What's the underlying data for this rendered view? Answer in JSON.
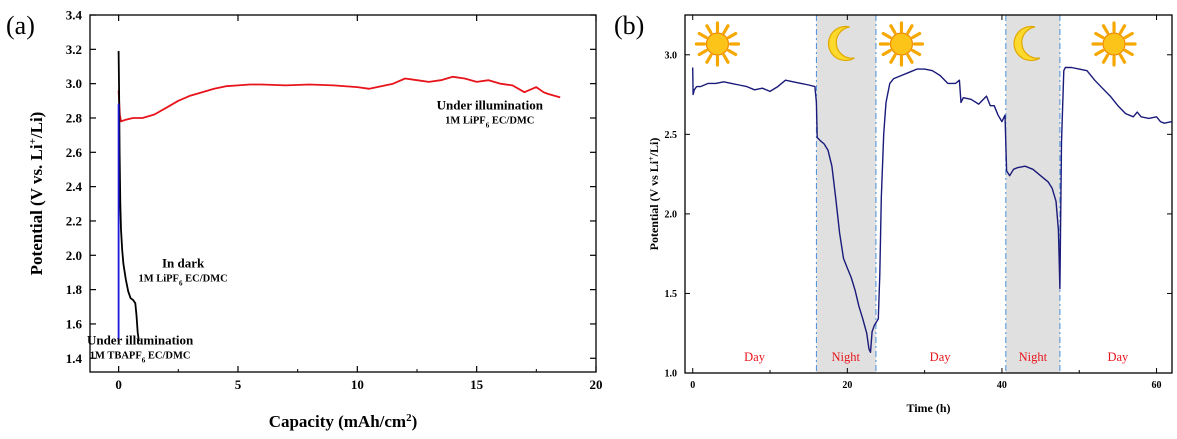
{
  "panels": {
    "a": {
      "label": "(a)"
    },
    "b": {
      "label": "(b)"
    }
  },
  "chart_data": [
    {
      "type": "line",
      "panel": "a",
      "xlabel": "Capacity (mAh/cm",
      "xlabel_sup": "2",
      "xlabel_end": ")",
      "ylabel": "Potential (V vs. Li",
      "ylabel_sup": "+",
      "ylabel_end": "/Li)",
      "xlim": [
        -1.2,
        20
      ],
      "ylim": [
        1.32,
        3.4
      ],
      "xticks": [
        0,
        5,
        10,
        15,
        20
      ],
      "yticks": [
        1.4,
        1.6,
        1.8,
        2.0,
        2.2,
        2.4,
        2.6,
        2.8,
        3.0,
        3.2,
        3.4
      ],
      "annotations": [
        {
          "line1": "Under illumination",
          "line2_pre": "1M LiPF",
          "line2_sub": "6",
          "line2_post": " EC/DMC",
          "color": "#e8141b",
          "x": 15.55,
          "y": 2.85,
          "anchor": "middle"
        },
        {
          "line1": "In dark",
          "line2_pre": "1M LiPF",
          "line2_sub": "6",
          "line2_post": " EC/DMC",
          "color": "#000000",
          "x": 2.7,
          "y": 1.93,
          "anchor": "middle"
        },
        {
          "line1": "Under illumination",
          "line2_pre": "1M TBAPF",
          "line2_sub": "6",
          "line2_post": " EC/DMC",
          "color": "#1a1adb",
          "x": 0.9,
          "y": 1.48,
          "anchor": "middle"
        }
      ],
      "series": [
        {
          "color": "#e8141b",
          "points": [
            [
              0,
              2.96
            ],
            [
              0.02,
              2.9
            ],
            [
              0.05,
              2.82
            ],
            [
              0.1,
              2.78
            ],
            [
              0.3,
              2.79
            ],
            [
              0.6,
              2.8
            ],
            [
              1,
              2.8
            ],
            [
              1.5,
              2.82
            ],
            [
              2,
              2.86
            ],
            [
              2.5,
              2.9
            ],
            [
              3,
              2.93
            ],
            [
              3.5,
              2.95
            ],
            [
              4,
              2.97
            ],
            [
              4.5,
              2.985
            ],
            [
              5,
              2.99
            ],
            [
              5.5,
              2.995
            ],
            [
              6,
              2.995
            ],
            [
              7,
              2.99
            ],
            [
              8,
              2.995
            ],
            [
              9,
              2.99
            ],
            [
              10,
              2.98
            ],
            [
              10.5,
              2.97
            ],
            [
              11,
              2.985
            ],
            [
              11.5,
              3.0
            ],
            [
              12,
              3.03
            ],
            [
              12.5,
              3.02
            ],
            [
              13,
              3.01
            ],
            [
              13.5,
              3.02
            ],
            [
              14,
              3.04
            ],
            [
              14.5,
              3.03
            ],
            [
              15,
              3.01
            ],
            [
              15.5,
              3.02
            ],
            [
              16,
              3.0
            ],
            [
              16.5,
              2.99
            ],
            [
              17,
              2.95
            ],
            [
              17.5,
              2.98
            ],
            [
              17.8,
              2.95
            ],
            [
              18,
              2.94
            ],
            [
              18.5,
              2.92
            ]
          ]
        },
        {
          "color": "#000000",
          "points": [
            [
              0,
              3.19
            ],
            [
              0.02,
              2.95
            ],
            [
              0.04,
              2.6
            ],
            [
              0.07,
              2.3
            ],
            [
              0.1,
              2.15
            ],
            [
              0.15,
              2.03
            ],
            [
              0.2,
              1.95
            ],
            [
              0.3,
              1.86
            ],
            [
              0.4,
              1.79
            ],
            [
              0.5,
              1.75
            ],
            [
              0.6,
              1.74
            ],
            [
              0.7,
              1.72
            ],
            [
              0.75,
              1.65
            ],
            [
              0.8,
              1.55
            ],
            [
              0.85,
              1.5
            ]
          ]
        },
        {
          "color": "#1a1adb",
          "points": [
            [
              0,
              1.5
            ],
            [
              0,
              2.3
            ],
            [
              0,
              2.88
            ],
            [
              0,
              2.3
            ],
            [
              0,
              1.5
            ]
          ]
        }
      ]
    },
    {
      "type": "line",
      "panel": "b",
      "xlabel": "Time (h)",
      "ylabel": "Potential (V vs Li",
      "ylabel_sup": "+",
      "ylabel_end": "/Li)",
      "xlim": [
        -1,
        62
      ],
      "ylim": [
        1.0,
        3.25
      ],
      "xticks": [
        0,
        20,
        40,
        60
      ],
      "yticks": [
        1.0,
        1.5,
        2.0,
        2.5,
        3.0
      ],
      "night_bands": [
        [
          16,
          23.7
        ],
        [
          40.5,
          47.5
        ]
      ],
      "period_labels": [
        {
          "text": "Day",
          "x": 8
        },
        {
          "text": "Night",
          "x": 19.8
        },
        {
          "text": "Day",
          "x": 32
        },
        {
          "text": "Night",
          "x": 44
        },
        {
          "text": "Day",
          "x": 55
        }
      ],
      "period_label_color": "#e8141b",
      "icons": [
        {
          "type": "sun-icon",
          "x": 3.2
        },
        {
          "type": "moon-icon",
          "x": 19.5
        },
        {
          "type": "sun-icon",
          "x": 27
        },
        {
          "type": "moon-icon",
          "x": 43.5
        },
        {
          "type": "sun-icon",
          "x": 54.5
        }
      ],
      "series": [
        {
          "color": "#1a1a7a",
          "points": [
            [
              0,
              2.92
            ],
            [
              0.05,
              2.75
            ],
            [
              0.2,
              2.78
            ],
            [
              0.5,
              2.8
            ],
            [
              1,
              2.8
            ],
            [
              2,
              2.82
            ],
            [
              3,
              2.82
            ],
            [
              4,
              2.83
            ],
            [
              5,
              2.82
            ],
            [
              6,
              2.81
            ],
            [
              7,
              2.8
            ],
            [
              8,
              2.78
            ],
            [
              9,
              2.79
            ],
            [
              10,
              2.77
            ],
            [
              11,
              2.8
            ],
            [
              12,
              2.84
            ],
            [
              13,
              2.83
            ],
            [
              14,
              2.82
            ],
            [
              15,
              2.81
            ],
            [
              15.8,
              2.8
            ],
            [
              16,
              2.7
            ],
            [
              16.1,
              2.48
            ],
            [
              16.5,
              2.46
            ],
            [
              17,
              2.44
            ],
            [
              17.5,
              2.4
            ],
            [
              18,
              2.3
            ],
            [
              18.5,
              2.1
            ],
            [
              19,
              1.88
            ],
            [
              19.5,
              1.72
            ],
            [
              20,
              1.66
            ],
            [
              20.5,
              1.6
            ],
            [
              21,
              1.52
            ],
            [
              21.5,
              1.42
            ],
            [
              22,
              1.34
            ],
            [
              22.5,
              1.25
            ],
            [
              22.8,
              1.15
            ],
            [
              23,
              1.13
            ],
            [
              23.2,
              1.26
            ],
            [
              23.5,
              1.3
            ],
            [
              24,
              1.34
            ],
            [
              24.2,
              1.62
            ],
            [
              24.4,
              2.1
            ],
            [
              24.7,
              2.5
            ],
            [
              25,
              2.7
            ],
            [
              25.5,
              2.82
            ],
            [
              26,
              2.85
            ],
            [
              27,
              2.87
            ],
            [
              28,
              2.89
            ],
            [
              29,
              2.91
            ],
            [
              30,
              2.91
            ],
            [
              31,
              2.9
            ],
            [
              32,
              2.87
            ],
            [
              33,
              2.82
            ],
            [
              34,
              2.82
            ],
            [
              34.5,
              2.84
            ],
            [
              34.7,
              2.7
            ],
            [
              35,
              2.73
            ],
            [
              36,
              2.72
            ],
            [
              37,
              2.69
            ],
            [
              38,
              2.74
            ],
            [
              38.5,
              2.68
            ],
            [
              39,
              2.68
            ],
            [
              39.5,
              2.62
            ],
            [
              40,
              2.58
            ],
            [
              40.4,
              2.62
            ],
            [
              40.6,
              2.27
            ],
            [
              41,
              2.24
            ],
            [
              41.5,
              2.28
            ],
            [
              42,
              2.29
            ],
            [
              43,
              2.3
            ],
            [
              44,
              2.28
            ],
            [
              45,
              2.24
            ],
            [
              46,
              2.2
            ],
            [
              46.5,
              2.16
            ],
            [
              47,
              2.08
            ],
            [
              47.3,
              1.9
            ],
            [
              47.5,
              1.53
            ],
            [
              47.7,
              2.45
            ],
            [
              48,
              2.9
            ],
            [
              48.2,
              2.92
            ],
            [
              49,
              2.92
            ],
            [
              50,
              2.91
            ],
            [
              51,
              2.9
            ],
            [
              52,
              2.84
            ],
            [
              53,
              2.79
            ],
            [
              54,
              2.74
            ],
            [
              55,
              2.68
            ],
            [
              56,
              2.63
            ],
            [
              57,
              2.61
            ],
            [
              57.5,
              2.64
            ],
            [
              58,
              2.61
            ],
            [
              59,
              2.6
            ],
            [
              60,
              2.61
            ],
            [
              60.5,
              2.58
            ],
            [
              61,
              2.57
            ],
            [
              62,
              2.58
            ]
          ]
        }
      ]
    }
  ]
}
